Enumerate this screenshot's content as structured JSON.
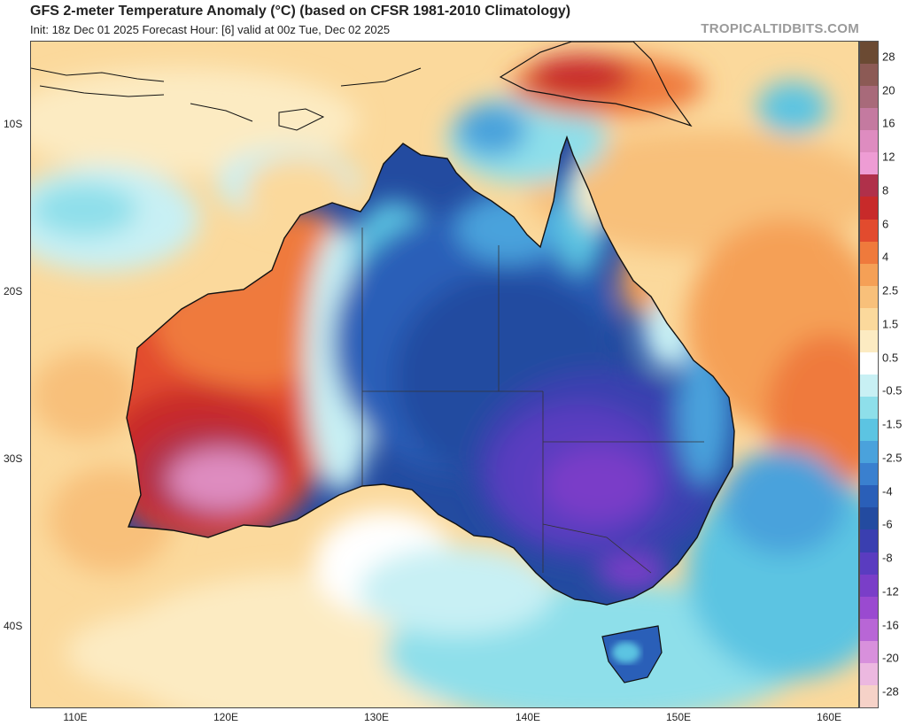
{
  "header": {
    "title": "GFS 2-meter Temperature Anomaly (°C) (based on CFSR 1981-2010 Climatology)",
    "subtitle": "Init: 18z Dec 01 2025   Forecast Hour: [6]   valid at 00z Tue, Dec 02 2025",
    "watermark": "TROPICALTIDBITS.COM"
  },
  "axes": {
    "lat_labels": [
      "10S",
      "20S",
      "30S",
      "40S"
    ],
    "lon_labels": [
      "110E",
      "120E",
      "130E",
      "140E",
      "150E",
      "160E"
    ]
  },
  "colorbar": {
    "labels": [
      "28",
      "20",
      "16",
      "12",
      "8",
      "6",
      "4",
      "2.5",
      "1.5",
      "0.5",
      "-0.5",
      "-1.5",
      "-2.5",
      "-4",
      "-6",
      "-8",
      "-12",
      "-16",
      "-20",
      "-28"
    ],
    "colors": [
      "#6b4a33",
      "#8c5a55",
      "#a86a7a",
      "#c47aa0",
      "#de8cc0",
      "#ee9cd4",
      "#b0304a",
      "#c82a2a",
      "#e24b2e",
      "#ef7a3c",
      "#f5a056",
      "#f8c07a",
      "#fbd99c",
      "#fcebc2",
      "#ffffff",
      "#c8f0f4",
      "#8edfea",
      "#5cc4e2",
      "#4aa2dc",
      "#3a80cf",
      "#2a5fb8",
      "#234ba0",
      "#3a3fb0",
      "#5a3cc0",
      "#7a3ec8",
      "#9a4ad0",
      "#b866d6",
      "#d890dc",
      "#ecb8e0",
      "#f6d2c8"
    ]
  },
  "map": {
    "region": "Australia",
    "lon_range": [
      107,
      162
    ],
    "lat_range": [
      -45,
      -3
    ],
    "colors": {
      "warm_ocean": "#fbd99c",
      "warm_land": "#ef7a3c",
      "hot_core": "#c82a2a",
      "very_hot": "#de8cc0",
      "cool_ocean": "#8edfea",
      "cold_land": "#2a5fb8",
      "very_cold": "#7a3ec8"
    }
  }
}
